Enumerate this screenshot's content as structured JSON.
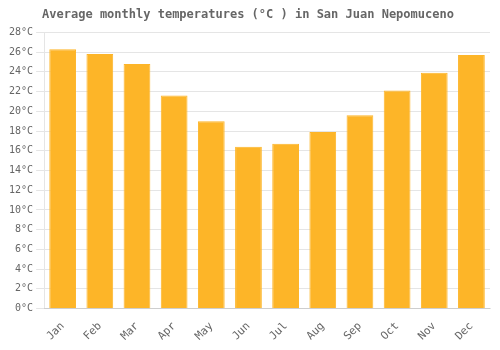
{
  "chart_data": {
    "type": "bar",
    "title": "Average monthly temperatures (°C ) in San Juan Nepomuceno",
    "categories": [
      "Jan",
      "Feb",
      "Mar",
      "Apr",
      "May",
      "Jun",
      "Jul",
      "Aug",
      "Sep",
      "Oct",
      "Nov",
      "Dec"
    ],
    "values": [
      26.3,
      25.8,
      24.8,
      21.6,
      19.0,
      16.4,
      16.7,
      17.9,
      19.6,
      22.1,
      23.9,
      25.7
    ],
    "color": "#FDB528",
    "ylim": [
      0,
      28
    ],
    "yticks": [
      {
        "value": 0,
        "label": "0°C"
      },
      {
        "value": 2,
        "label": "2°C"
      },
      {
        "value": 4,
        "label": "4°C"
      },
      {
        "value": 6,
        "label": "6°C"
      },
      {
        "value": 8,
        "label": "8°C"
      },
      {
        "value": 10,
        "label": "10°C"
      },
      {
        "value": 12,
        "label": "12°C"
      },
      {
        "value": 14,
        "label": "14°C"
      },
      {
        "value": 16,
        "label": "16°C"
      },
      {
        "value": 18,
        "label": "18°C"
      },
      {
        "value": 20,
        "label": "20°C"
      },
      {
        "value": 22,
        "label": "22°C"
      },
      {
        "value": 24,
        "label": "24°C"
      },
      {
        "value": 26,
        "label": "26°C"
      },
      {
        "value": 28,
        "label": "28°C"
      }
    ],
    "grid": true
  }
}
